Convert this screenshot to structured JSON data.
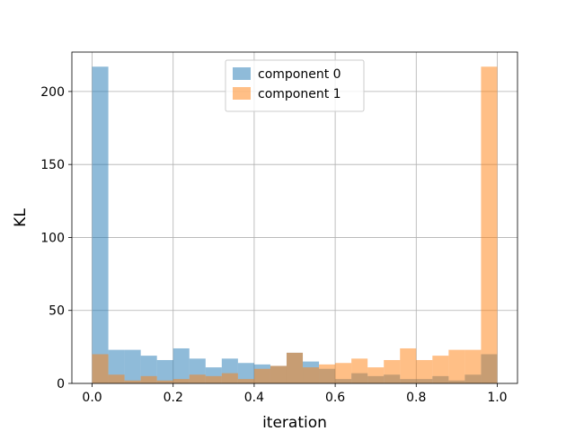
{
  "chart_data": {
    "type": "bar",
    "subtype": "histogram-overlay",
    "title": "",
    "xlabel": "iteration",
    "ylabel": "KL",
    "xlim": [
      -0.05,
      1.05
    ],
    "ylim": [
      0,
      227
    ],
    "xticks": [
      0.0,
      0.2,
      0.4,
      0.6,
      0.8,
      1.0
    ],
    "xtick_labels": [
      "0.0",
      "0.2",
      "0.4",
      "0.6",
      "0.8",
      "1.0"
    ],
    "yticks": [
      0,
      50,
      100,
      150,
      200
    ],
    "ytick_labels": [
      "0",
      "50",
      "100",
      "150",
      "200"
    ],
    "grid": true,
    "legend_position": "top-center",
    "bin_edges": [
      0.0,
      0.04,
      0.08,
      0.12,
      0.16,
      0.2,
      0.24,
      0.28,
      0.32,
      0.36,
      0.4,
      0.44,
      0.48,
      0.52,
      0.56,
      0.6,
      0.64,
      0.68,
      0.72,
      0.76,
      0.8,
      0.84,
      0.88,
      0.92,
      0.96,
      1.0
    ],
    "series": [
      {
        "name": "component 0",
        "color": "#1f77b4",
        "alpha": 0.5,
        "values": [
          217,
          23,
          23,
          19,
          16,
          24,
          17,
          11,
          17,
          14,
          13,
          12,
          21,
          15,
          10,
          3,
          7,
          5,
          6,
          3,
          3,
          5,
          2,
          6,
          20
        ]
      },
      {
        "name": "component 1",
        "color": "#ff7f0e",
        "alpha": 0.5,
        "values": [
          20,
          6,
          2,
          5,
          2,
          3,
          6,
          5,
          7,
          3,
          10,
          12,
          21,
          11,
          13,
          14,
          17,
          11,
          16,
          24,
          16,
          19,
          23,
          23,
          217
        ]
      }
    ]
  }
}
